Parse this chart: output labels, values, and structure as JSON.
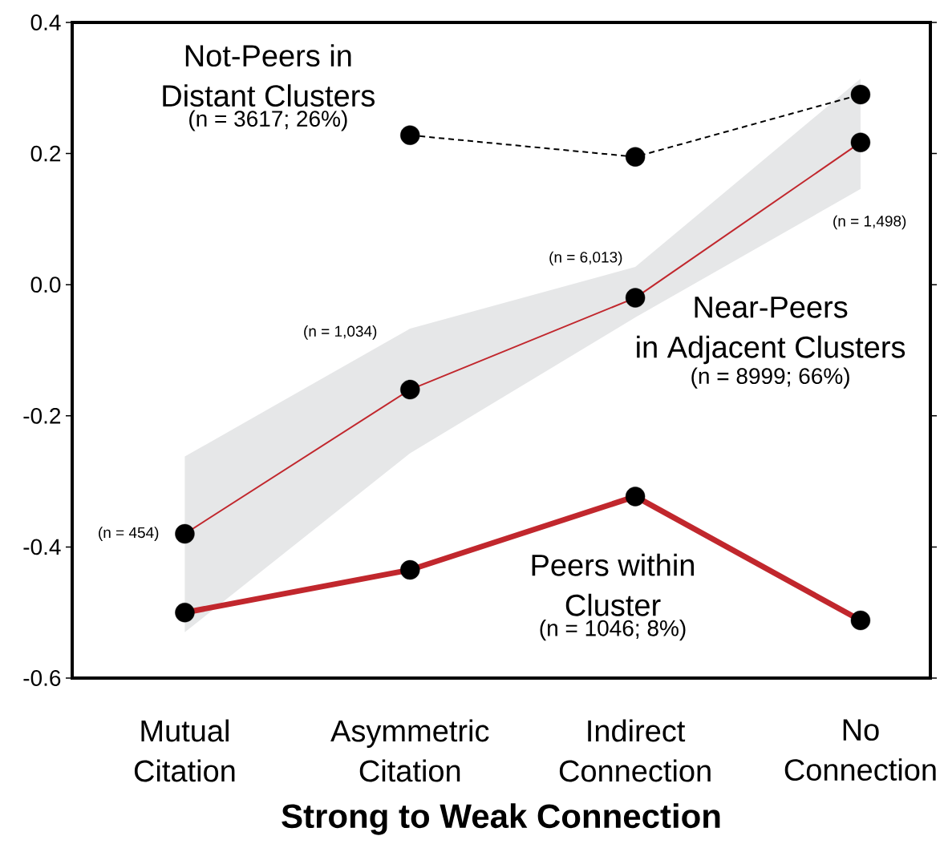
{
  "chart_data": {
    "type": "line",
    "categories": [
      "Mutual Citation",
      "Asymmetric Citation",
      "Indirect Connection",
      "No Connection"
    ],
    "series": [
      {
        "name": "Not-Peers in Distant Clusters",
        "color": "#000000",
        "line_style": "dashed",
        "values": [
          null,
          0.228,
          0.195,
          0.29
        ]
      },
      {
        "name": "Near-Peers in Adjacent Clusters",
        "color": "#c1272d",
        "line_style": "solid",
        "values": [
          -0.38,
          -0.16,
          -0.02,
          0.217
        ],
        "lower": [
          -0.53,
          -0.257,
          -0.05,
          0.146
        ],
        "upper": [
          -0.262,
          -0.067,
          0.027,
          0.314
        ]
      },
      {
        "name": "Peers within Cluster",
        "color": "#c1272d",
        "line_style": "solid",
        "values": [
          -0.5,
          -0.435,
          -0.323,
          -0.512
        ]
      }
    ],
    "marker": "circle",
    "xlabel": "Strong to Weak Connection",
    "ylim": [
      -0.6,
      0.4
    ],
    "yticks": [
      -0.6,
      -0.4,
      -0.2,
      {
        "value": 0,
        "label": "0.0"
      },
      0.2,
      0.4
    ],
    "annotations": [
      "(n = 454)",
      "(n = 1,034)",
      "(n = 6,013)",
      "(n = 1,498)",
      "(n = 3617; 26%)",
      "(n = 8999; 66%)",
      "(n = 1046; 8%)"
    ]
  }
}
